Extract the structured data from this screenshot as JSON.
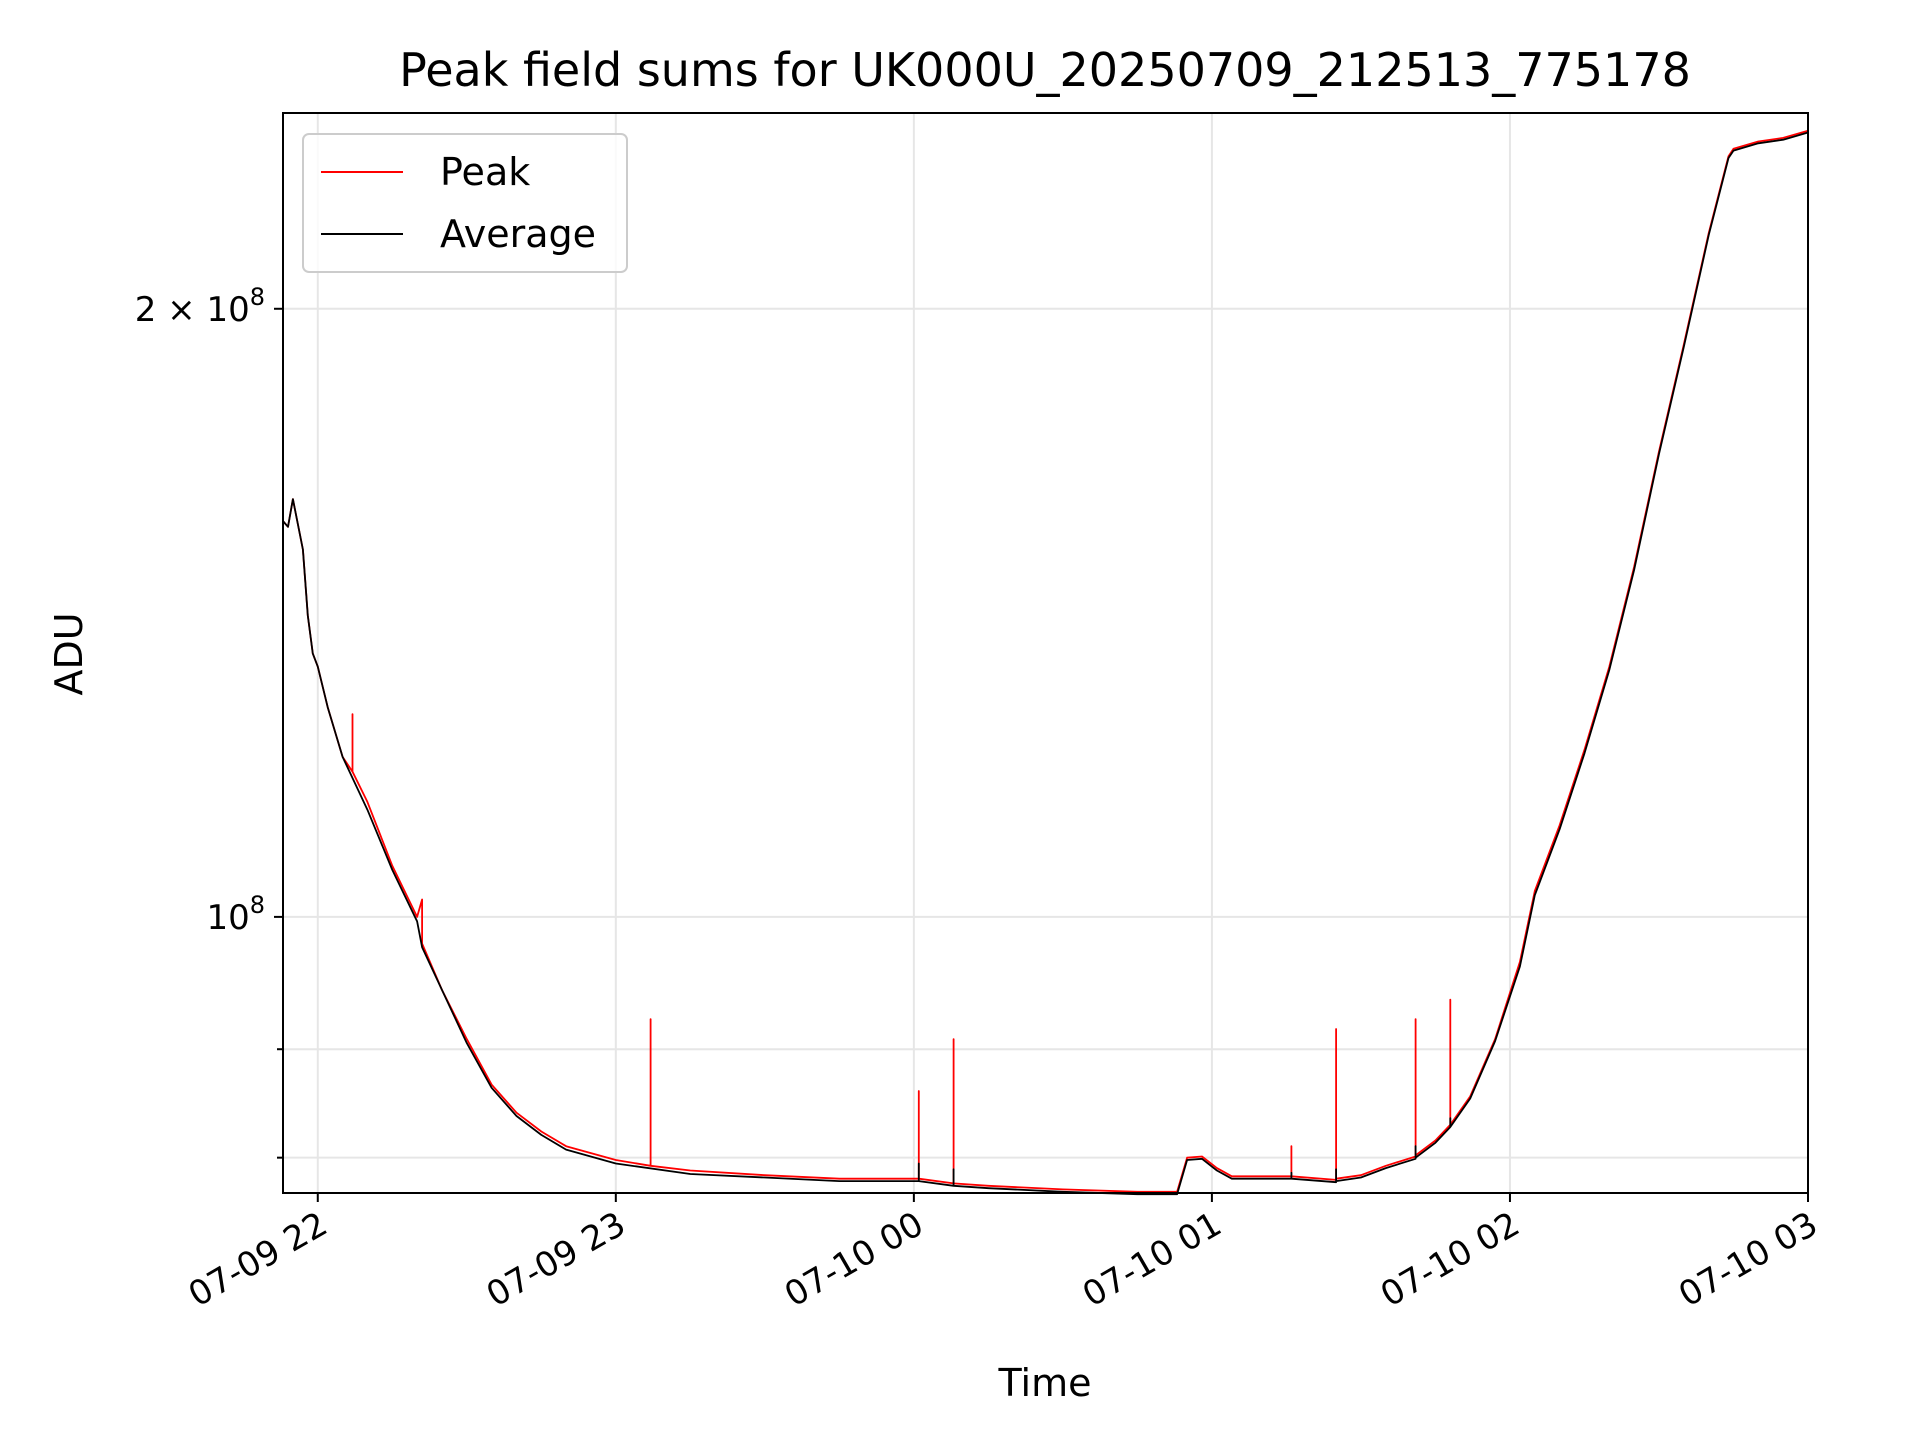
{
  "chart_data": {
    "type": "line",
    "title": "Peak field sums for UK000U_20250709_212513_775178",
    "xlabel": "Time",
    "ylabel": "ADU",
    "yscale": "log",
    "grid": true,
    "legend_position": "upper-left",
    "xlim": [
      "2025-07-09 21:53",
      "2025-07-10 03:00"
    ],
    "ylim": [
      73000000,
      250000000
    ],
    "x_ticks": [
      {
        "value": "2025-07-09 22:00",
        "label": "07-09 22"
      },
      {
        "value": "2025-07-09 23:00",
        "label": "07-09 23"
      },
      {
        "value": "2025-07-10 00:00",
        "label": "07-10 00"
      },
      {
        "value": "2025-07-10 01:00",
        "label": "07-10 01"
      },
      {
        "value": "2025-07-10 02:00",
        "label": "07-10 02"
      },
      {
        "value": "2025-07-10 03:00",
        "label": "07-10 03"
      }
    ],
    "y_ticks": [
      {
        "value": 100000000,
        "base": "10",
        "exp": "8",
        "coef": ""
      },
      {
        "value": 200000000,
        "base": "10",
        "exp": "8",
        "coef": "2 × "
      }
    ],
    "y_minor_ticks": [
      76000000,
      86000000
    ],
    "colors": {
      "peak": "#ff0000",
      "average": "#000000"
    },
    "series": [
      {
        "name": "Peak",
        "x": [
          "2025-07-09 21:53",
          "2025-07-09 21:54",
          "2025-07-09 21:55",
          "2025-07-09 21:57",
          "2025-07-09 21:58",
          "2025-07-09 21:59",
          "2025-07-09 22:00",
          "2025-07-09 22:02",
          "2025-07-09 22:05",
          "2025-07-09 22:07",
          "2025-07-09 22:07",
          "2025-07-09 22:07",
          "2025-07-09 22:10",
          "2025-07-09 22:15",
          "2025-07-09 22:20",
          "2025-07-09 22:21",
          "2025-07-09 22:21",
          "2025-07-09 22:21",
          "2025-07-09 22:25",
          "2025-07-09 22:30",
          "2025-07-09 22:35",
          "2025-07-09 22:40",
          "2025-07-09 22:45",
          "2025-07-09 22:50",
          "2025-07-09 23:00",
          "2025-07-09 23:07",
          "2025-07-09 23:07",
          "2025-07-09 23:07",
          "2025-07-09 23:15",
          "2025-07-09 23:30",
          "2025-07-09 23:45",
          "2025-07-10 00:01",
          "2025-07-10 00:01",
          "2025-07-10 00:01",
          "2025-07-10 00:08",
          "2025-07-10 00:08",
          "2025-07-10 00:08",
          "2025-07-10 00:15",
          "2025-07-10 00:30",
          "2025-07-10 00:45",
          "2025-07-10 00:53",
          "2025-07-10 00:55",
          "2025-07-10 00:58",
          "2025-07-10 01:01",
          "2025-07-10 01:04",
          "2025-07-10 01:10",
          "2025-07-10 01:16",
          "2025-07-10 01:16",
          "2025-07-10 01:16",
          "2025-07-10 01:25",
          "2025-07-10 01:25",
          "2025-07-10 01:25",
          "2025-07-10 01:30",
          "2025-07-10 01:35",
          "2025-07-10 01:41",
          "2025-07-10 01:41",
          "2025-07-10 01:41",
          "2025-07-10 01:45",
          "2025-07-10 01:48",
          "2025-07-10 01:48",
          "2025-07-10 01:48",
          "2025-07-10 01:52",
          "2025-07-10 01:57",
          "2025-07-10 02:02",
          "2025-07-10 02:05",
          "2025-07-10 02:10",
          "2025-07-10 02:15",
          "2025-07-10 02:20",
          "2025-07-10 02:25",
          "2025-07-10 02:30",
          "2025-07-10 02:35",
          "2025-07-10 02:40",
          "2025-07-10 02:44",
          "2025-07-10 02:45",
          "2025-07-10 02:50",
          "2025-07-10 02:55",
          "2025-07-10 03:00"
        ],
        "y": [
          157000000,
          156000000,
          161000000,
          152000000,
          141000000,
          135000000,
          133000000,
          127000000,
          120000000,
          118000000,
          126000000,
          118000000,
          114000000,
          106000000,
          100000000,
          102000000,
          97000000,
          97000000,
          92000000,
          87000000,
          82600000,
          80000000,
          78300000,
          77000000,
          75800000,
          75300000,
          89000000,
          75300000,
          74900000,
          74500000,
          74200000,
          74200000,
          82000000,
          74200000,
          73800000,
          87000000,
          73800000,
          73600000,
          73300000,
          73100000,
          73100000,
          76000000,
          76100000,
          75100000,
          74400000,
          74400000,
          74400000,
          77000000,
          74400000,
          74100000,
          88000000,
          74200000,
          74500000,
          75300000,
          76100000,
          89000000,
          76200000,
          77500000,
          78900000,
          91000000,
          78900000,
          81500000,
          87000000,
          95000000,
          103000000,
          111000000,
          121000000,
          133000000,
          149000000,
          170000000,
          192000000,
          218000000,
          238000000,
          240000000,
          242000000,
          243000000,
          245000000
        ]
      },
      {
        "name": "Average",
        "x": [
          "2025-07-09 21:53",
          "2025-07-09 21:54",
          "2025-07-09 21:55",
          "2025-07-09 21:57",
          "2025-07-09 21:58",
          "2025-07-09 21:59",
          "2025-07-09 22:00",
          "2025-07-09 22:02",
          "2025-07-09 22:05",
          "2025-07-09 22:10",
          "2025-07-09 22:15",
          "2025-07-09 22:20",
          "2025-07-09 22:21",
          "2025-07-09 22:25",
          "2025-07-09 22:30",
          "2025-07-09 22:35",
          "2025-07-09 22:40",
          "2025-07-09 22:45",
          "2025-07-09 22:50",
          "2025-07-09 23:00",
          "2025-07-09 23:15",
          "2025-07-09 23:30",
          "2025-07-09 23:45",
          "2025-07-10 00:01",
          "2025-07-10 00:01",
          "2025-07-10 00:01",
          "2025-07-10 00:08",
          "2025-07-10 00:08",
          "2025-07-10 00:08",
          "2025-07-10 00:15",
          "2025-07-10 00:30",
          "2025-07-10 00:45",
          "2025-07-10 00:53",
          "2025-07-10 00:55",
          "2025-07-10 00:58",
          "2025-07-10 01:01",
          "2025-07-10 01:04",
          "2025-07-10 01:10",
          "2025-07-10 01:16",
          "2025-07-10 01:16",
          "2025-07-10 01:16",
          "2025-07-10 01:25",
          "2025-07-10 01:25",
          "2025-07-10 01:25",
          "2025-07-10 01:30",
          "2025-07-10 01:35",
          "2025-07-10 01:41",
          "2025-07-10 01:41",
          "2025-07-10 01:41",
          "2025-07-10 01:45",
          "2025-07-10 01:48",
          "2025-07-10 01:48",
          "2025-07-10 01:48",
          "2025-07-10 01:52",
          "2025-07-10 01:57",
          "2025-07-10 02:02",
          "2025-07-10 02:05",
          "2025-07-10 02:10",
          "2025-07-10 02:15",
          "2025-07-10 02:20",
          "2025-07-10 02:25",
          "2025-07-10 02:30",
          "2025-07-10 02:35",
          "2025-07-10 02:40",
          "2025-07-10 02:44",
          "2025-07-10 02:45",
          "2025-07-10 02:50",
          "2025-07-10 02:55",
          "2025-07-10 03:00"
        ],
        "y": [
          157000000,
          156000000,
          161000000,
          152000000,
          141000000,
          135000000,
          133000000,
          127000000,
          120000000,
          113000000,
          105500000,
          99500000,
          96600000,
          92000000,
          86600000,
          82300000,
          79700000,
          78000000,
          76700000,
          75500000,
          74600000,
          74300000,
          74000000,
          74000000,
          75500000,
          74000000,
          73600000,
          75000000,
          73600000,
          73400000,
          73100000,
          72900000,
          72900000,
          75800000,
          75900000,
          74900000,
          74200000,
          74200000,
          74200000,
          74700000,
          74200000,
          73900000,
          75000000,
          74000000,
          74300000,
          75100000,
          75900000,
          77000000,
          76000000,
          77300000,
          78700000,
          79500000,
          78700000,
          81300000,
          86800000,
          94500000,
          102500000,
          110500000,
          120500000,
          132500000,
          148500000,
          169500000,
          191500000,
          217500000,
          237500000,
          239500000,
          241500000,
          242500000,
          244500000
        ]
      }
    ]
  }
}
